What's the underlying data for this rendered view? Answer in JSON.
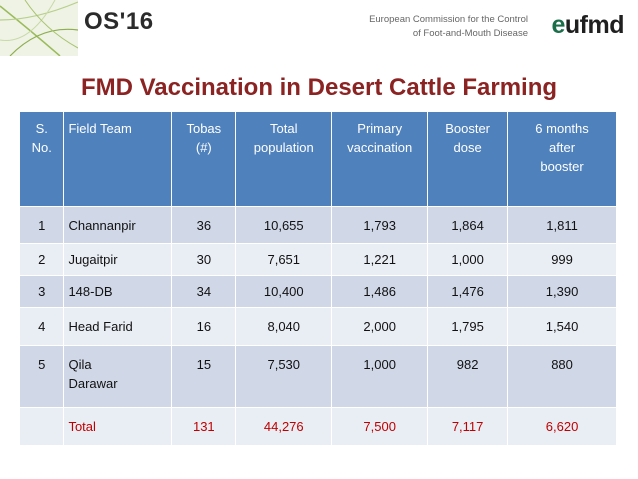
{
  "header": {
    "conference": "OS'16",
    "org_line1": "European Commission for the Control",
    "org_line2": "of Foot-and-Mouth Disease",
    "logo_e": "e",
    "logo_rest": "ufmd"
  },
  "title": "FMD Vaccination in Desert Cattle Farming",
  "table": {
    "headers": [
      [
        "S.",
        "No."
      ],
      [
        "Field Team"
      ],
      [
        "Tobas",
        "(#)"
      ],
      [
        "Total",
        "population"
      ],
      [
        "Primary",
        "vaccination"
      ],
      [
        "Booster",
        "dose"
      ],
      [
        "6 months",
        "after",
        "booster"
      ]
    ],
    "rows": [
      {
        "sno": "1",
        "team": "Channanpir",
        "tobas": "36",
        "total": "10,655",
        "primary": "1,793",
        "booster": "1,864",
        "six": "1,811"
      },
      {
        "sno": "2",
        "team": "Jugaitpir",
        "tobas": "30",
        "total": "7,651",
        "primary": "1,221",
        "booster": "1,000",
        "six": "999"
      },
      {
        "sno": "3",
        "team": "148-DB",
        "tobas": "34",
        "total": "10,400",
        "primary": "1,486",
        "booster": "1,476",
        "six": "1,390"
      },
      {
        "sno": "4",
        "team": "Head Farid",
        "tobas": "16",
        "total": "8,040",
        "primary": "2,000",
        "booster": "1,795",
        "six": "1,540"
      },
      {
        "sno": "5",
        "team_line1": "Qila",
        "team_line2": "Darawar",
        "tobas": "15",
        "total": "7,530",
        "primary": "1,000",
        "booster": "982",
        "six": "880"
      }
    ],
    "total": {
      "label": "Total",
      "tobas": "131",
      "total": "44,276",
      "primary": "7,500",
      "booster": "7,117",
      "six": "6,620"
    }
  },
  "colors": {
    "header_blue": "#4f81bd",
    "row_dark": "#d0d8e8",
    "row_light": "#e9edf4",
    "title_red": "#8c2323",
    "total_red": "#c00000"
  }
}
